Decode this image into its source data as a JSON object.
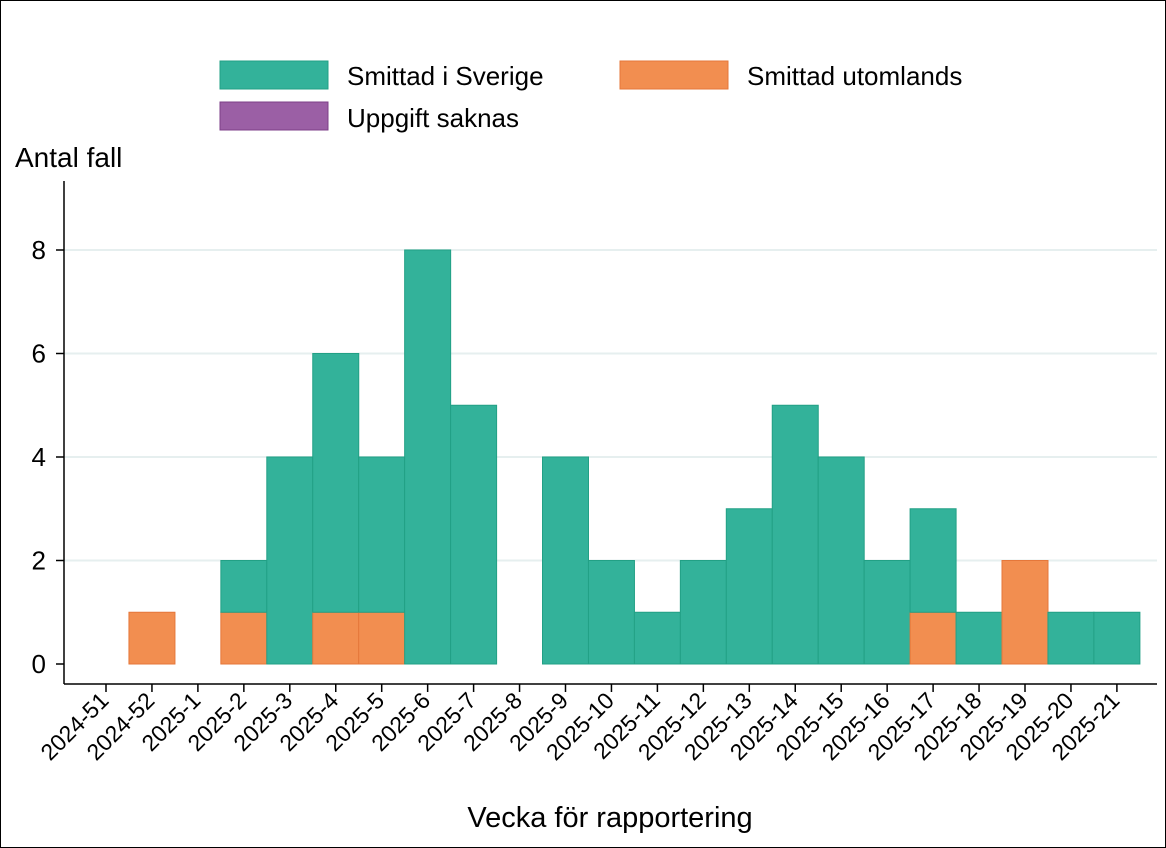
{
  "chart_data": {
    "type": "bar",
    "stacked": true,
    "ylabel": "Antal fall",
    "xlabel": "Vecka för rapportering",
    "ylim": [
      0,
      9
    ],
    "yticks": [
      0,
      2,
      4,
      6,
      8
    ],
    "grid": true,
    "legend_position": "top",
    "categories": [
      "2024-51",
      "2024-52",
      "2025-1",
      "2025-2",
      "2025-3",
      "2025-4",
      "2025-5",
      "2025-6",
      "2025-7",
      "2025-8",
      "2025-9",
      "2025-10",
      "2025-11",
      "2025-12",
      "2025-13",
      "2025-14",
      "2025-15",
      "2025-16",
      "2025-17",
      "2025-18",
      "2025-19",
      "2025-20",
      "2025-21"
    ],
    "series": [
      {
        "name": "Smittad utomlands",
        "color": "#f28e50",
        "values": [
          0,
          1,
          0,
          1,
          0,
          1,
          1,
          0,
          0,
          0,
          0,
          0,
          0,
          0,
          0,
          0,
          0,
          0,
          1,
          0,
          2,
          0,
          0
        ]
      },
      {
        "name": "Smittad i Sverige",
        "color": "#33b29a",
        "values": [
          0,
          0,
          0,
          1,
          4,
          5,
          3,
          8,
          5,
          0,
          4,
          2,
          1,
          2,
          3,
          5,
          4,
          2,
          2,
          1,
          0,
          1,
          1
        ]
      },
      {
        "name": "Uppgift saknas",
        "color": "#9b5fa5",
        "values": [
          0,
          0,
          0,
          0,
          0,
          0,
          0,
          0,
          0,
          0,
          0,
          0,
          0,
          0,
          0,
          0,
          0,
          0,
          0,
          0,
          0,
          0,
          0
        ]
      }
    ],
    "legend": [
      {
        "name": "Smittad i Sverige",
        "color": "#33b29a"
      },
      {
        "name": "Smittad utomlands",
        "color": "#f28e50"
      },
      {
        "name": "Uppgift saknas",
        "color": "#9b5fa5"
      }
    ]
  }
}
